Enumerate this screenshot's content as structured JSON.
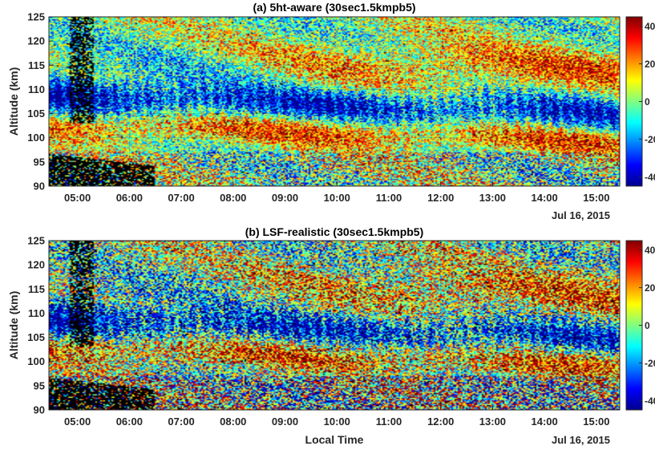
{
  "colors": {
    "colormap": [
      "#00008f",
      "#0000ff",
      "#0080ff",
      "#00ffff",
      "#80ff80",
      "#ffff00",
      "#ff8000",
      "#ff0000",
      "#800000"
    ],
    "missing": "#000000",
    "axis": "#262626"
  },
  "shared": {
    "xlabel": "Local Time",
    "date_label": "Jul 16, 2015",
    "ylabel": "Altitude (km)"
  },
  "chart_data": [
    {
      "type": "heatmap",
      "title": "(a) 5ht-aware (30sec1.5kmpb5)",
      "xlabel": "",
      "ylabel": "Altitude (km)",
      "x_ticks": [
        "05:00",
        "06:00",
        "07:00",
        "08:00",
        "09:00",
        "10:00",
        "11:00",
        "12:00",
        "13:00",
        "14:00",
        "15:00"
      ],
      "x_secondary_label": "Jul 16, 2015",
      "xlim": [
        "04:27",
        "15:27"
      ],
      "y_ticks": [
        90,
        95,
        100,
        105,
        110,
        115,
        120,
        125
      ],
      "ylim": [
        90,
        125
      ],
      "colorbar": {
        "ticks": [
          40,
          20,
          0,
          -20,
          -40
        ],
        "range": [
          -45,
          45
        ]
      },
      "grid": true
    },
    {
      "type": "heatmap",
      "title": "(b) LSF-realistic (30sec1.5kmpb5)",
      "xlabel": "Local Time",
      "ylabel": "Altitude (km)",
      "x_ticks": [
        "05:00",
        "06:00",
        "07:00",
        "08:00",
        "09:00",
        "10:00",
        "11:00",
        "12:00",
        "13:00",
        "14:00",
        "15:00"
      ],
      "x_secondary_label": "Jul 16, 2015",
      "xlim": [
        "04:27",
        "15:27"
      ],
      "y_ticks": [
        90,
        95,
        100,
        105,
        110,
        115,
        120,
        125
      ],
      "ylim": [
        90,
        125
      ],
      "colorbar": {
        "ticks": [
          40,
          20,
          0,
          -20,
          -40
        ],
        "range": [
          -45,
          45
        ]
      },
      "grid": true
    }
  ]
}
